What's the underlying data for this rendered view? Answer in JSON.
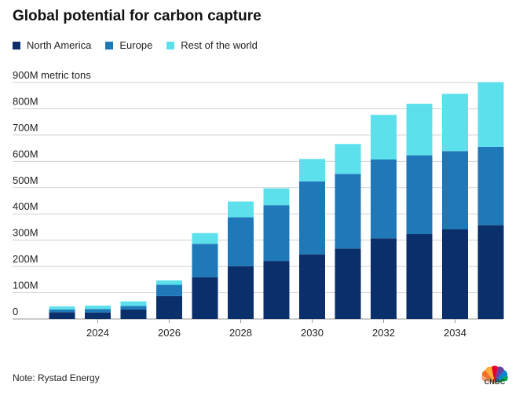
{
  "chart_data": {
    "type": "bar",
    "stacked": true,
    "title": "Global potential for carbon capture",
    "ylabel": "900M metric tons",
    "xlabel": "",
    "categories": [
      "2023",
      "2024",
      "2025",
      "2026",
      "2027",
      "2028",
      "2029",
      "2030",
      "2031",
      "2032",
      "2033",
      "2034",
      "2035"
    ],
    "x_tick_labels": [
      "2024",
      "2026",
      "2028",
      "2030",
      "2032",
      "2034"
    ],
    "y_tick_labels": [
      "0",
      "100M",
      "200M",
      "300M",
      "400M",
      "500M",
      "600M",
      "700M",
      "800M",
      "900M metric tons"
    ],
    "ylim": [
      0,
      900
    ],
    "grid": true,
    "legend_position": "top-left",
    "series": [
      {
        "name": "North America",
        "color": "#0b2f6b",
        "values": [
          26,
          25,
          36,
          87,
          159,
          201,
          221,
          246,
          268,
          307,
          323,
          342,
          357
        ]
      },
      {
        "name": "Europe",
        "color": "#1f78b8",
        "values": [
          10,
          13,
          14,
          43,
          127,
          186,
          212,
          278,
          284,
          300,
          300,
          297,
          298
        ]
      },
      {
        "name": "Rest of the world",
        "color": "#5ce0ec",
        "values": [
          12,
          13,
          17,
          17,
          41,
          60,
          64,
          85,
          114,
          170,
          196,
          218,
          246
        ]
      }
    ],
    "note": "Note: Rystad Energy"
  },
  "branding": {
    "logo_text": "CNBC",
    "logo_icon": "peacock-icon"
  }
}
